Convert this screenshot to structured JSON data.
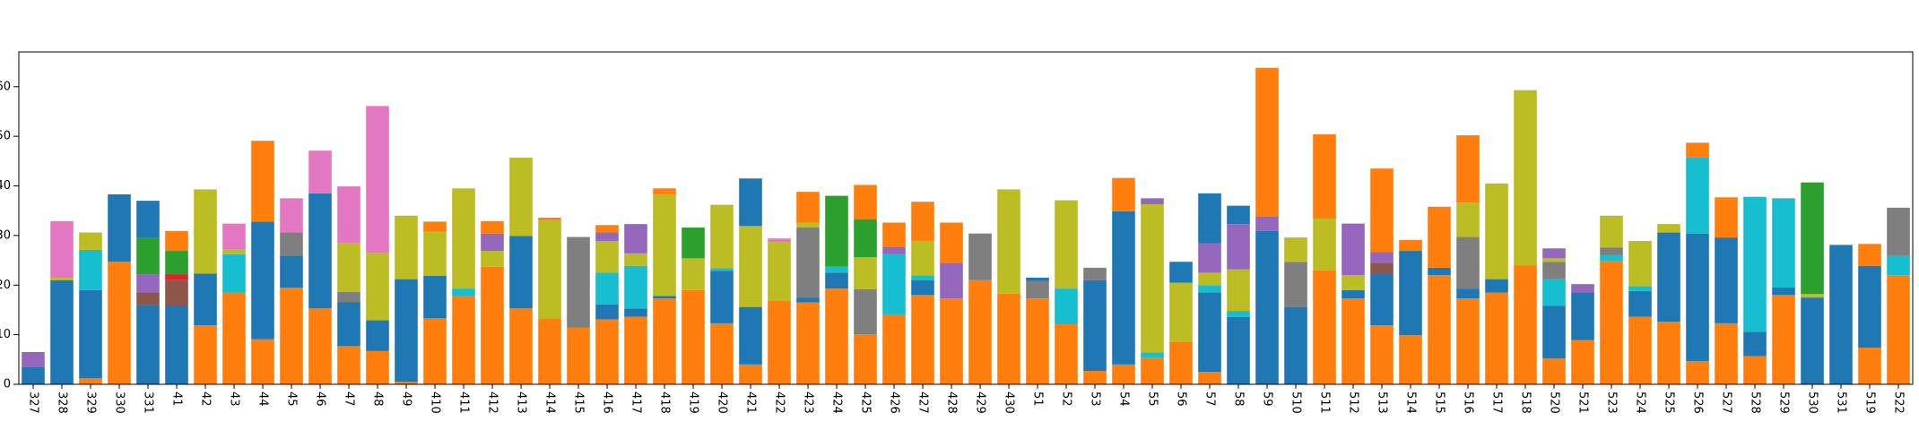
{
  "chart_data": {
    "type": "stacked_bar",
    "categories": [
      "327",
      "328",
      "329",
      "330",
      "331",
      "41",
      "42",
      "43",
      "44",
      "45",
      "46",
      "47",
      "48",
      "49",
      "410",
      "411",
      "412",
      "413",
      "414",
      "415",
      "416",
      "417",
      "418",
      "419",
      "420",
      "421",
      "422",
      "423",
      "424",
      "425",
      "426",
      "427",
      "428",
      "429",
      "430",
      "51",
      "52",
      "53",
      "54",
      "55",
      "56",
      "57",
      "58",
      "59",
      "510",
      "511",
      "512",
      "513",
      "514",
      "515",
      "516",
      "517",
      "518",
      "520",
      "521",
      "523",
      "524",
      "525",
      "526",
      "527",
      "528",
      "529",
      "530",
      "531",
      "519",
      "522"
    ],
    "ylim": [
      0,
      67
    ],
    "yticks": [
      0,
      10,
      20,
      30,
      40,
      50,
      60
    ],
    "series": [
      {
        "color": "#ff7f0e",
        "values": [
          0,
          0,
          1.2,
          24.7,
          0,
          0,
          11.9,
          18.5,
          9.1,
          19.5,
          15.3,
          7.7,
          6.7,
          0.5,
          13.3,
          17.8,
          23.7,
          15.3,
          13.3,
          11.4,
          13.1,
          13.6,
          17.3,
          19,
          12.3,
          4,
          16.8,
          16.5,
          19.3,
          10.1,
          14.1,
          18,
          17.3,
          21,
          18.3,
          17.3,
          12.1,
          2.7,
          4,
          5.4,
          8.6,
          2.5,
          0,
          0,
          0,
          23,
          17.3,
          11.9,
          9.9,
          22,
          17.3,
          18.5,
          24,
          5.2,
          8.9,
          24.9,
          13.6,
          12.6,
          4.7,
          12.3,
          5.7,
          18,
          0,
          0,
          7.4,
          22
        ]
      },
      {
        "color": "#1f77b4",
        "values": [
          3.5,
          21,
          17.8,
          13.6,
          16,
          15.8,
          10.4,
          0,
          23.7,
          6.4,
          23.2,
          8.9,
          6.2,
          20.7,
          8.6,
          0,
          0,
          14.6,
          0,
          0,
          3,
          1.7,
          0.5,
          0,
          10.6,
          11.6,
          0,
          1,
          3.2,
          0,
          0,
          3,
          0,
          0,
          0,
          0,
          0,
          18.3,
          30.9,
          0,
          0,
          16,
          13.6,
          30.9,
          15.6,
          0,
          1.7,
          10.4,
          17,
          1.5,
          2,
          2.7,
          0,
          10.6,
          9.6,
          0,
          5.2,
          18,
          25.7,
          17.3,
          4.9,
          1.5,
          17.5,
          28.1,
          16.5,
          0
        ]
      },
      {
        "color": "#8c564b",
        "values": [
          0,
          0,
          0,
          0,
          2.5,
          5.2,
          0,
          0,
          0,
          0,
          0,
          0,
          0,
          0,
          0,
          0,
          0,
          0,
          0,
          0,
          0,
          0,
          0,
          0,
          0,
          0,
          0,
          0,
          0,
          0,
          0,
          0,
          0,
          0,
          0,
          0,
          0,
          0,
          0,
          0,
          0,
          0,
          0,
          0,
          0,
          0,
          0,
          2.2,
          0,
          0,
          0,
          0,
          0,
          0,
          0,
          0,
          0,
          0,
          0,
          0,
          0,
          0,
          0,
          0,
          0,
          0
        ]
      },
      {
        "color": "#d62728",
        "values": [
          0,
          0,
          0,
          0,
          0,
          1.2,
          0,
          0,
          0,
          0,
          0,
          0,
          0,
          0,
          0,
          0,
          0,
          0,
          0,
          0,
          0,
          0,
          0,
          0,
          0,
          0,
          0,
          0,
          0,
          0,
          0,
          0,
          0,
          0,
          0,
          0,
          0,
          0,
          0,
          0,
          0,
          0,
          0,
          0,
          0,
          0,
          0,
          0,
          0,
          0,
          0,
          0,
          0,
          0,
          0,
          0,
          0,
          0,
          0,
          0,
          0,
          0,
          0,
          0,
          0,
          0
        ]
      },
      {
        "color": "#17becf",
        "values": [
          0,
          0,
          8.1,
          0,
          0,
          0,
          0,
          7.7,
          0,
          0,
          0,
          0,
          0,
          0,
          0,
          1.5,
          0,
          0,
          0,
          0,
          6.4,
          8.6,
          0,
          0,
          0.5,
          0,
          0,
          0,
          1.2,
          0,
          12.1,
          1,
          0,
          0,
          0,
          0,
          7.2,
          0,
          0,
          1,
          0,
          1.5,
          1.2,
          0,
          0,
          0,
          0,
          0,
          0,
          0,
          0,
          0,
          0,
          5.4,
          0,
          1.2,
          1,
          0,
          15.3,
          0,
          27.2,
          18,
          0,
          0,
          0,
          4
        ]
      },
      {
        "color": "#7f7f7f",
        "values": [
          0,
          0,
          0,
          0,
          0,
          0,
          0,
          0,
          0,
          4.7,
          0,
          2,
          0,
          0,
          0,
          0,
          0,
          0,
          0,
          18.3,
          0,
          0,
          0,
          0,
          0,
          0,
          0,
          14.1,
          0,
          9.1,
          0,
          0,
          0,
          9.4,
          0,
          3.5,
          0,
          2.5,
          0,
          0,
          0,
          0,
          0,
          0,
          9.1,
          0,
          0,
          0,
          0,
          0,
          10.4,
          0,
          0,
          3.5,
          0,
          1.5,
          0,
          0,
          0,
          0,
          0,
          0,
          0,
          0,
          0,
          9.6
        ]
      },
      {
        "color": "#bcbd22",
        "values": [
          0,
          0.5,
          3.5,
          0,
          0,
          0,
          17,
          1,
          0,
          0,
          0,
          9.9,
          13.6,
          12.8,
          8.9,
          20.2,
          3.2,
          15.8,
          19.8,
          0,
          6.4,
          2.5,
          20.5,
          6.4,
          12.8,
          16.3,
          11.9,
          1,
          0,
          6.4,
          0,
          6.9,
          0,
          0,
          21,
          0,
          17.8,
          0,
          0,
          29.9,
          11.9,
          2.5,
          8.4,
          0,
          4.9,
          10.4,
          3,
          0,
          0,
          0,
          6.9,
          19.3,
          35.3,
          0.7,
          0,
          6.4,
          9.1,
          1.7,
          0,
          0,
          0,
          0,
          0.7,
          0,
          0,
          0
        ]
      },
      {
        "color": "#9467bd",
        "values": [
          3,
          0,
          0,
          0,
          3.7,
          0,
          0,
          0,
          0,
          0,
          0,
          0,
          0,
          0,
          0,
          0,
          3.5,
          0,
          0,
          0,
          1.7,
          5.9,
          0,
          0,
          0,
          0,
          0,
          0,
          0,
          0,
          1.5,
          0,
          7.2,
          0,
          0,
          0,
          0,
          0,
          0,
          1.2,
          0,
          5.9,
          9.1,
          3,
          0,
          0,
          10.4,
          2.2,
          0,
          0,
          0,
          0,
          0,
          2,
          1.7,
          0,
          0,
          0,
          0,
          0,
          0,
          0,
          0,
          0,
          0,
          0
        ]
      },
      {
        "color": "#2ca02c",
        "values": [
          0,
          0,
          0,
          0,
          7.4,
          4.7,
          0,
          0,
          0,
          0,
          0,
          0,
          0,
          0,
          0,
          0,
          0,
          0,
          0,
          0,
          0,
          0,
          0,
          6.2,
          0,
          0,
          0,
          0,
          14.3,
          7.7,
          0,
          0,
          0,
          0,
          0,
          0,
          0,
          0,
          0,
          0,
          0,
          0,
          0,
          0,
          0,
          0,
          0,
          0,
          0,
          0,
          0,
          0,
          0,
          0,
          0,
          0,
          0,
          0,
          0,
          0,
          0,
          0,
          22.5,
          0,
          0,
          0
        ]
      },
      {
        "color": "#e377c2",
        "values": [
          0,
          11.4,
          0,
          0,
          0,
          0,
          0,
          5.2,
          0,
          6.9,
          8.6,
          11.4,
          29.6,
          0,
          0,
          0,
          0,
          0,
          0,
          0,
          0,
          0,
          0,
          0,
          0,
          0,
          0.7,
          0,
          0,
          0,
          0,
          0,
          0,
          0,
          0,
          0,
          0,
          0,
          0,
          0,
          0,
          0,
          0,
          0,
          0,
          0,
          0,
          0,
          0,
          0,
          0,
          0,
          0,
          0,
          0,
          0,
          0,
          0,
          0,
          0,
          0,
          0,
          0,
          0,
          0,
          0
        ]
      },
      {
        "color": "#ff7f0e",
        "values": [
          0,
          0,
          0,
          0,
          0,
          4,
          0,
          0,
          16.3,
          0,
          0,
          0,
          0,
          0,
          2,
          0,
          2.5,
          0,
          0.5,
          0,
          1.5,
          0,
          1.2,
          0,
          0,
          0,
          0,
          6.2,
          0,
          6.9,
          4.9,
          7.9,
          8.1,
          0,
          0,
          0,
          0,
          0,
          6.7,
          0,
          0,
          0,
          0,
          29.9,
          0,
          17,
          0,
          16.8,
          2.2,
          12.3,
          13.6,
          0,
          0,
          0,
          0,
          0,
          0,
          0,
          3,
          8.1,
          0,
          0,
          0,
          0,
          4.4,
          0
        ]
      },
      {
        "color": "#1f77b4",
        "values": [
          0,
          0,
          0,
          0,
          7.4,
          0,
          0,
          0,
          0,
          0,
          0,
          0,
          0,
          0,
          0,
          0,
          0,
          0,
          0,
          0,
          0,
          0,
          0,
          0,
          0,
          9.6,
          0,
          0,
          0,
          0,
          0,
          0,
          0,
          0,
          0,
          0.7,
          0,
          0,
          0,
          0,
          4.2,
          10.1,
          3.7,
          0,
          0,
          0,
          0,
          0,
          0,
          0,
          0,
          0,
          0,
          0,
          0,
          0,
          0,
          0,
          0,
          0,
          0,
          0,
          0,
          0,
          0,
          0
        ]
      }
    ]
  }
}
